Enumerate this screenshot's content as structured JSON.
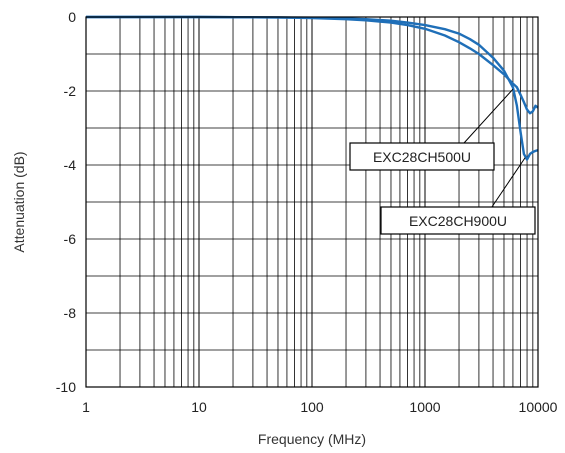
{
  "chart_data": {
    "type": "line",
    "title": "",
    "xlabel": "Frequency (MHz)",
    "ylabel": "Attenuation  (dB)",
    "xscale": "log",
    "xlim": [
      1,
      10000
    ],
    "ylim": [
      -10,
      0
    ],
    "grid": true,
    "legend": "none",
    "x_ticks": [
      "1",
      "10",
      "100",
      "1000",
      "10000"
    ],
    "y_ticks": [
      "0",
      "-2",
      "-4",
      "-6",
      "-8",
      "-10"
    ],
    "colors": {
      "series": "#1f6fb8",
      "grid": "#000000",
      "frame": "#000000"
    },
    "series": [
      {
        "name": "EXC28CH500U",
        "x": [
          1,
          10,
          50,
          100,
          200,
          300,
          500,
          700,
          1000,
          1500,
          2000,
          2500,
          3000,
          4000,
          5000,
          6000,
          6500,
          7000,
          7500,
          8000,
          8500,
          9000,
          9500,
          10000
        ],
        "y": [
          0,
          0,
          -0.01,
          -0.03,
          -0.06,
          -0.09,
          -0.15,
          -0.22,
          -0.32,
          -0.5,
          -0.68,
          -0.85,
          -1.0,
          -1.3,
          -1.55,
          -1.8,
          -1.9,
          -2.1,
          -2.3,
          -2.5,
          -2.6,
          -2.55,
          -2.4,
          -2.45
        ]
      },
      {
        "name": "EXC28CH900U",
        "x": [
          1,
          10,
          50,
          100,
          200,
          300,
          500,
          700,
          1000,
          1500,
          2000,
          2500,
          3000,
          4000,
          5000,
          6000,
          6500,
          7000,
          7500,
          8000,
          8500,
          9000,
          9500,
          10000
        ],
        "y": [
          0,
          0,
          -0.01,
          -0.02,
          -0.04,
          -0.06,
          -0.1,
          -0.15,
          -0.22,
          -0.33,
          -0.45,
          -0.6,
          -0.75,
          -1.1,
          -1.45,
          -1.9,
          -2.4,
          -3.1,
          -3.7,
          -3.85,
          -3.7,
          -3.65,
          -3.62,
          -3.6
        ]
      }
    ],
    "annotations": [
      {
        "text": "EXC28CH500U",
        "series": "EXC28CH500U",
        "x": 6000,
        "y": -1.95
      },
      {
        "text": "EXC28CH900U",
        "series": "EXC28CH900U",
        "x": 7700,
        "y": -3.8
      }
    ]
  }
}
